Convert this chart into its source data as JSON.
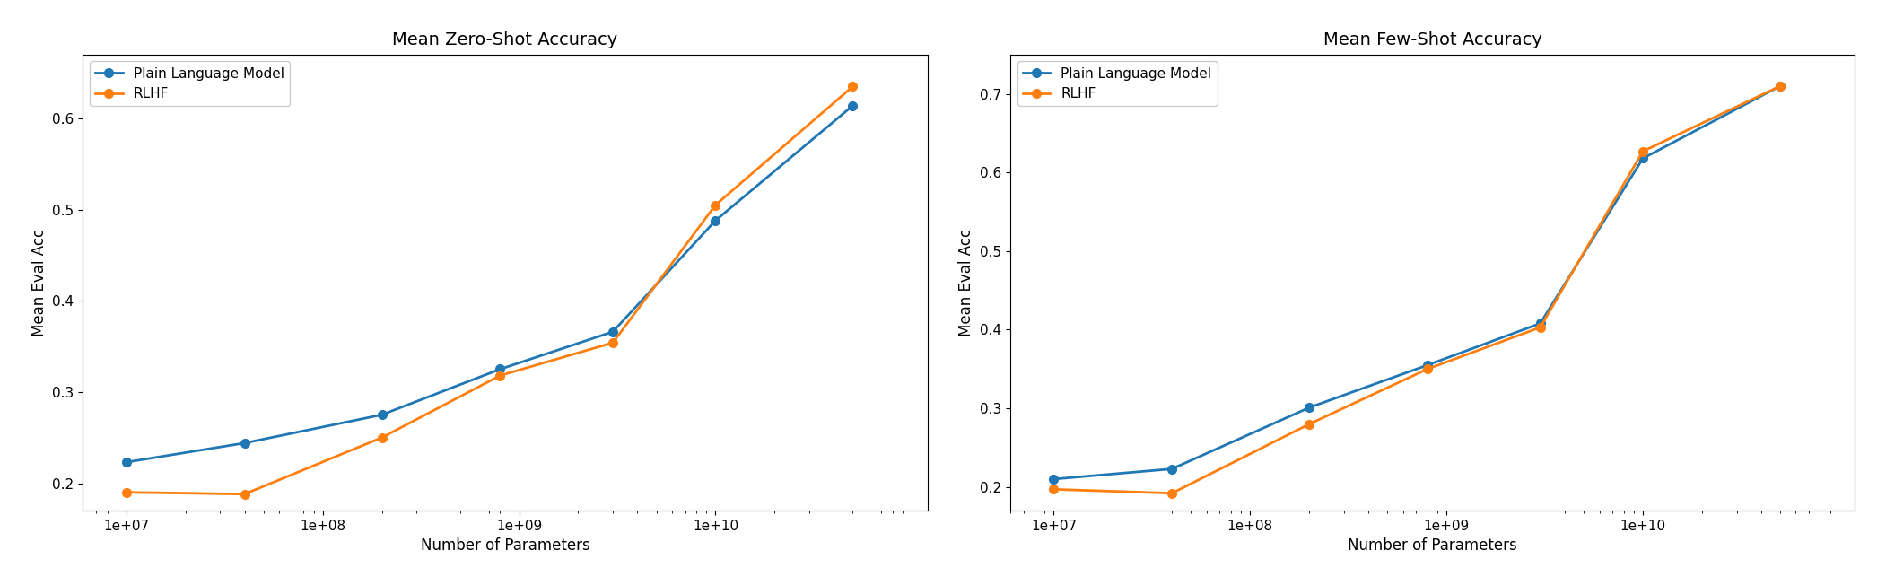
{
  "x_params": [
    10000000.0,
    40000000.0,
    200000000.0,
    800000000.0,
    3000000000.0,
    10000000000.0,
    50000000000.0
  ],
  "zero_shot": {
    "title": "Mean Zero-Shot Accuracy",
    "plain_lm": [
      0.223,
      0.244,
      0.275,
      0.325,
      0.366,
      0.488,
      0.614
    ],
    "rlhf": [
      0.19,
      0.188,
      0.25,
      0.318,
      0.354,
      0.505,
      0.635
    ]
  },
  "few_shot": {
    "title": "Mean Few-Shot Accuracy",
    "plain_lm": [
      0.21,
      0.223,
      0.301,
      0.355,
      0.408,
      0.618,
      0.71
    ],
    "rlhf": [
      0.197,
      0.192,
      0.28,
      0.35,
      0.403,
      0.627,
      0.71
    ]
  },
  "ylabel": "Mean Eval Acc",
  "xlabel": "Number of Parameters",
  "plain_lm_label": "Plain Language Model",
  "rlhf_label": "RLHF",
  "plain_lm_color": "#1f77b4",
  "rlhf_color": "#ff7f0e",
  "zero_shot_ylim": [
    0.17,
    0.67
  ],
  "few_shot_ylim": [
    0.17,
    0.75
  ],
  "zero_shot_yticks": [
    0.2,
    0.3,
    0.4,
    0.5,
    0.6
  ],
  "few_shot_yticks": [
    0.2,
    0.3,
    0.4,
    0.5,
    0.6,
    0.7
  ],
  "xlim": [
    6000000.0,
    120000000000.0
  ],
  "xticks": [
    10000000.0,
    100000000.0,
    1000000000.0,
    10000000000.0
  ],
  "linewidth": 2.0,
  "markersize": 7
}
